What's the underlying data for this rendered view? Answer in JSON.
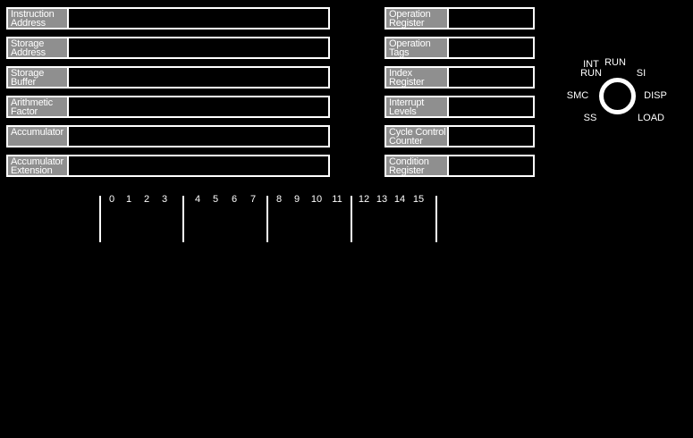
{
  "panel": {
    "name": "console-display-panel",
    "background": "#000000",
    "line_color": "#ffffff",
    "label_bg": "#8f8f8f",
    "label_text_color": "#ffffff"
  },
  "left_registers": [
    {
      "id": "instruction-address",
      "lines": [
        "Instruction",
        "Address"
      ],
      "lit_bits": []
    },
    {
      "id": "storage-address",
      "lines": [
        "Storage",
        "Address"
      ],
      "lit_bits": []
    },
    {
      "id": "storage-buffer",
      "lines": [
        "Storage",
        "Buffer"
      ],
      "lit_bits": []
    },
    {
      "id": "arithmetic-factor",
      "lines": [
        "Arithmetic",
        "Factor"
      ],
      "lit_bits": []
    },
    {
      "id": "accumulator",
      "lines": [
        "Accumulator"
      ],
      "lit_bits": []
    },
    {
      "id": "accumulator-extension",
      "lines": [
        "Accumulator",
        "Extension"
      ],
      "lit_bits": []
    }
  ],
  "right_registers": [
    {
      "id": "operation-register",
      "lines": [
        "Operation",
        "Register"
      ],
      "lit_bits": []
    },
    {
      "id": "operation-tags",
      "lines": [
        "Operation",
        "Tags"
      ],
      "lit_bits": []
    },
    {
      "id": "index-register",
      "lines": [
        "Index",
        "Register"
      ],
      "lit_bits": []
    },
    {
      "id": "interrupt-levels",
      "lines": [
        "Interrupt",
        "Levels"
      ],
      "lit_bits": []
    },
    {
      "id": "cycle-control-counter",
      "lines": [
        "Cycle Control",
        "Counter"
      ],
      "lit_bits": []
    },
    {
      "id": "condition-register",
      "lines": [
        "Condition",
        "Register"
      ],
      "lit_bits": []
    }
  ],
  "bit_scale": {
    "groups": [
      [
        "0",
        "1",
        "2",
        "3"
      ],
      [
        "4",
        "5",
        "6",
        "7"
      ],
      [
        "8",
        "9",
        "10",
        "11"
      ],
      [
        "12",
        "13",
        "14",
        "15"
      ]
    ]
  },
  "mode_dial": {
    "positions": [
      {
        "id": "int-run",
        "lines": [
          "INT",
          "RUN"
        ]
      },
      {
        "id": "run",
        "lines": [
          "RUN"
        ]
      },
      {
        "id": "si",
        "lines": [
          "SI"
        ]
      },
      {
        "id": "smc",
        "lines": [
          "SMC"
        ]
      },
      {
        "id": "disp",
        "lines": [
          "DISP"
        ]
      },
      {
        "id": "ss",
        "lines": [
          "SS"
        ]
      },
      {
        "id": "load",
        "lines": [
          "LOAD"
        ]
      }
    ]
  }
}
